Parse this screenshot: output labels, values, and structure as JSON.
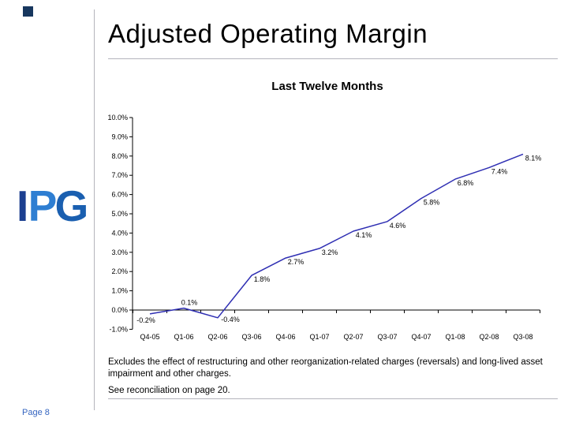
{
  "header": {
    "title": "Adjusted Operating Margin"
  },
  "logo": {
    "letters": [
      "I",
      "P",
      "G"
    ],
    "colors": [
      "#1c3f90",
      "#2e7ed2",
      "#1a5fb0"
    ]
  },
  "chart_data": {
    "type": "line",
    "title": "Last Twelve Months",
    "categories": [
      "Q4-05",
      "Q1-06",
      "Q2-06",
      "Q3-06",
      "Q4-06",
      "Q1-07",
      "Q2-07",
      "Q3-07",
      "Q4-07",
      "Q1-08",
      "Q2-08",
      "Q3-08"
    ],
    "values": [
      -0.2,
      0.1,
      -0.4,
      1.8,
      2.7,
      3.2,
      4.1,
      4.6,
      5.8,
      6.8,
      7.4,
      8.1
    ],
    "data_labels": [
      "-0.2%",
      "0.1%",
      "-0.4%",
      "1.8%",
      "2.7%",
      "3.2%",
      "4.1%",
      "4.6%",
      "5.8%",
      "6.8%",
      "7.4%",
      "8.1%"
    ],
    "y_ticks": [
      "10.0%",
      "9.0%",
      "8.0%",
      "7.0%",
      "6.0%",
      "5.0%",
      "4.0%",
      "3.0%",
      "2.0%",
      "1.0%",
      "0.0%",
      "-1.0%"
    ],
    "ylim": [
      -1,
      10
    ],
    "xlabel": "",
    "ylabel": "",
    "grid": false,
    "legend": "none",
    "line_color": "#2f2fb3",
    "axis_color": "#000000"
  },
  "footer": {
    "note1": "Excludes the effect of restructuring and other reorganization-related charges (reversals) and long-lived asset impairment and other charges.",
    "note2": "See reconciliation on page 20.",
    "page_label": "Page 8"
  }
}
